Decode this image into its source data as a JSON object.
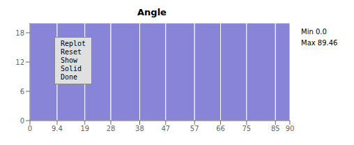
{
  "chart_data": {
    "type": "histogram",
    "title": "Angle",
    "bins": [
      0,
      9.4,
      19,
      28,
      38,
      47,
      57,
      66,
      75,
      85,
      90
    ],
    "values": [
      20,
      20,
      20,
      20,
      20,
      20,
      20,
      20,
      20,
      20
    ],
    "xlim": [
      0,
      90
    ],
    "xticks": [
      0,
      9.4,
      19,
      28,
      38,
      47,
      57,
      66,
      75,
      85,
      90
    ],
    "ylim": [
      0,
      20
    ],
    "yticks": [
      0,
      6,
      12,
      18
    ],
    "grid": false,
    "annotations": [
      "Min 0.0",
      "Max 89.46",
      "Replot",
      "Reset",
      "Show",
      "Solid",
      "Done"
    ]
  }
}
